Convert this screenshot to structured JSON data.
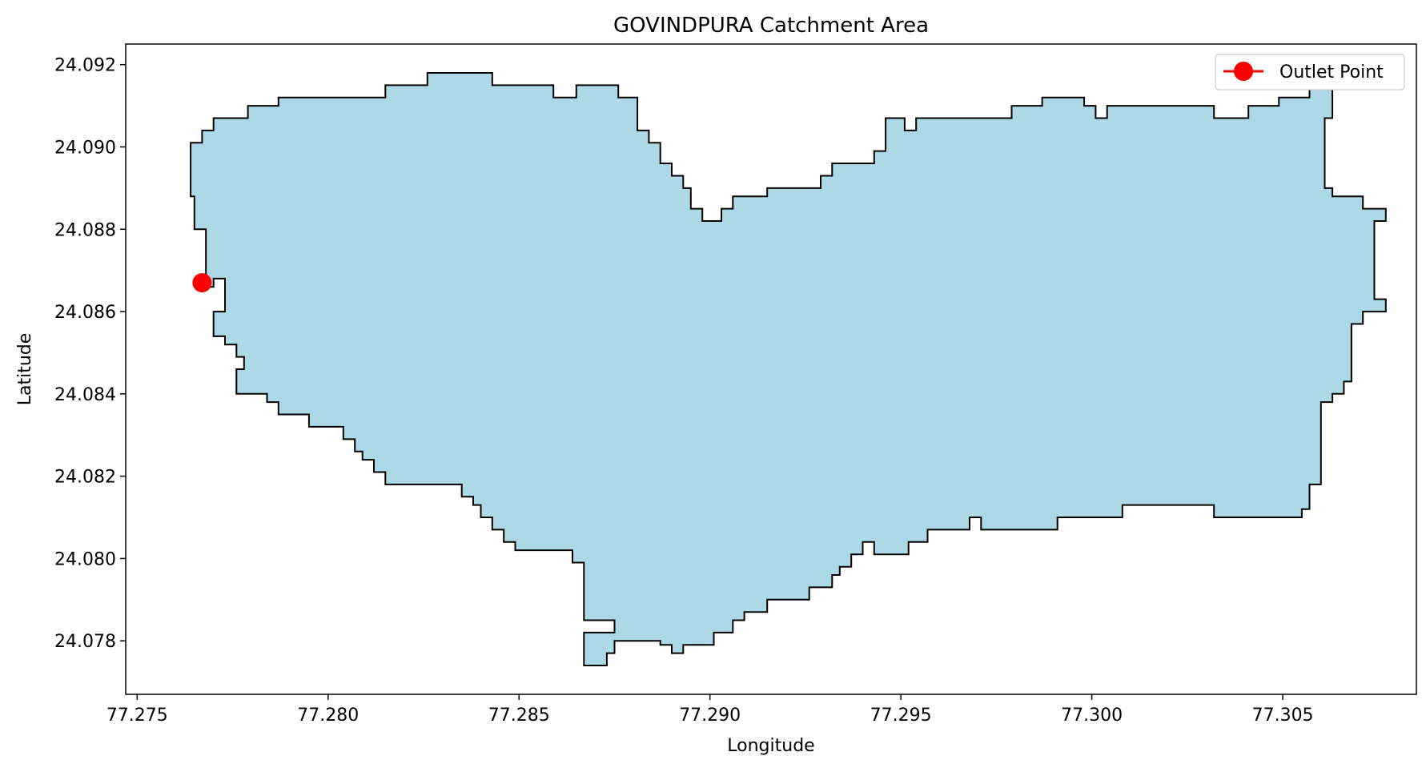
{
  "chart_data": {
    "type": "area",
    "title": "GOVINDPURA Catchment Area",
    "xlabel": "Longitude",
    "ylabel": "Latitude",
    "xlim": [
      77.2747,
      77.3085
    ],
    "ylim": [
      24.0767,
      24.0925
    ],
    "xticks": [
      77.275,
      77.28,
      77.285,
      77.29,
      77.295,
      77.3,
      77.305
    ],
    "xtick_labels": [
      "77.275",
      "77.280",
      "77.285",
      "77.290",
      "77.295",
      "77.300",
      "77.305"
    ],
    "yticks": [
      24.078,
      24.08,
      24.082,
      24.084,
      24.086,
      24.088,
      24.09,
      24.092
    ],
    "ytick_labels": [
      "24.078",
      "24.080",
      "24.082",
      "24.084",
      "24.086",
      "24.088",
      "24.090",
      "24.092"
    ],
    "grid": false,
    "legend": {
      "position": "top-right",
      "entries": [
        {
          "label": "Outlet Point",
          "color": "#ff0000"
        }
      ]
    },
    "polygon": {
      "fill": "#add8e6",
      "edge": "#000000",
      "points": [
        [
          77.2764,
          24.0901
        ],
        [
          77.2767,
          24.0901
        ],
        [
          77.2767,
          24.0904
        ],
        [
          77.277,
          24.0904
        ],
        [
          77.277,
          24.0907
        ],
        [
          77.2779,
          24.0907
        ],
        [
          77.2779,
          24.091
        ],
        [
          77.2787,
          24.091
        ],
        [
          77.2787,
          24.0912
        ],
        [
          77.2815,
          24.0912
        ],
        [
          77.2815,
          24.0915
        ],
        [
          77.2826,
          24.0915
        ],
        [
          77.2826,
          24.0918
        ],
        [
          77.2843,
          24.0918
        ],
        [
          77.2843,
          24.0915
        ],
        [
          77.2859,
          24.0915
        ],
        [
          77.2859,
          24.0912
        ],
        [
          77.2865,
          24.0912
        ],
        [
          77.2865,
          24.0915
        ],
        [
          77.2876,
          24.0915
        ],
        [
          77.2876,
          24.0912
        ],
        [
          77.2881,
          24.0912
        ],
        [
          77.2881,
          24.0904
        ],
        [
          77.2884,
          24.0904
        ],
        [
          77.2884,
          24.0901
        ],
        [
          77.2887,
          24.0901
        ],
        [
          77.2887,
          24.0896
        ],
        [
          77.289,
          24.0896
        ],
        [
          77.289,
          24.0893
        ],
        [
          77.2893,
          24.0893
        ],
        [
          77.2893,
          24.089
        ],
        [
          77.2895,
          24.089
        ],
        [
          77.2895,
          24.0885
        ],
        [
          77.2898,
          24.0885
        ],
        [
          77.2898,
          24.0882
        ],
        [
          77.2903,
          24.0882
        ],
        [
          77.2903,
          24.0885
        ],
        [
          77.2906,
          24.0885
        ],
        [
          77.2906,
          24.0888
        ],
        [
          77.2915,
          24.0888
        ],
        [
          77.2915,
          24.089
        ],
        [
          77.2929,
          24.089
        ],
        [
          77.2929,
          24.0893
        ],
        [
          77.2932,
          24.0893
        ],
        [
          77.2932,
          24.0896
        ],
        [
          77.2943,
          24.0896
        ],
        [
          77.2943,
          24.0899
        ],
        [
          77.2946,
          24.0899
        ],
        [
          77.2946,
          24.0907
        ],
        [
          77.2951,
          24.0907
        ],
        [
          77.2951,
          24.0904
        ],
        [
          77.2954,
          24.0904
        ],
        [
          77.2954,
          24.0907
        ],
        [
          77.2979,
          24.0907
        ],
        [
          77.2979,
          24.091
        ],
        [
          77.2987,
          24.091
        ],
        [
          77.2987,
          24.0912
        ],
        [
          77.2998,
          24.0912
        ],
        [
          77.2998,
          24.091
        ],
        [
          77.3001,
          24.091
        ],
        [
          77.3001,
          24.0907
        ],
        [
          77.3004,
          24.0907
        ],
        [
          77.3004,
          24.091
        ],
        [
          77.3032,
          24.091
        ],
        [
          77.3032,
          24.0907
        ],
        [
          77.3041,
          24.0907
        ],
        [
          77.3041,
          24.091
        ],
        [
          77.3049,
          24.091
        ],
        [
          77.3049,
          24.0912
        ],
        [
          77.3057,
          24.0912
        ],
        [
          77.3057,
          24.0915
        ],
        [
          77.3063,
          24.0915
        ],
        [
          77.3063,
          24.0907
        ],
        [
          77.3061,
          24.0907
        ],
        [
          77.3061,
          24.089
        ],
        [
          77.3063,
          24.089
        ],
        [
          77.3063,
          24.0888
        ],
        [
          77.3071,
          24.0888
        ],
        [
          77.3071,
          24.0885
        ],
        [
          77.3077,
          24.0885
        ],
        [
          77.3077,
          24.0882
        ],
        [
          77.3074,
          24.0882
        ],
        [
          77.3074,
          24.0863
        ],
        [
          77.3077,
          24.0863
        ],
        [
          77.3077,
          24.086
        ],
        [
          77.3071,
          24.086
        ],
        [
          77.3071,
          24.0857
        ],
        [
          77.3068,
          24.0857
        ],
        [
          77.3068,
          24.0843
        ],
        [
          77.3066,
          24.0843
        ],
        [
          77.3066,
          24.084
        ],
        [
          77.3063,
          24.084
        ],
        [
          77.3063,
          24.0838
        ],
        [
          77.306,
          24.0838
        ],
        [
          77.306,
          24.0818
        ],
        [
          77.3057,
          24.0818
        ],
        [
          77.3057,
          24.0812
        ],
        [
          77.3055,
          24.0812
        ],
        [
          77.3055,
          24.081
        ],
        [
          77.3032,
          24.081
        ],
        [
          77.3032,
          24.0813
        ],
        [
          77.3008,
          24.0813
        ],
        [
          77.3008,
          24.081
        ],
        [
          77.2991,
          24.081
        ],
        [
          77.2991,
          24.0807
        ],
        [
          77.2971,
          24.0807
        ],
        [
          77.2971,
          24.081
        ],
        [
          77.2968,
          24.081
        ],
        [
          77.2968,
          24.0807
        ],
        [
          77.2957,
          24.0807
        ],
        [
          77.2957,
          24.0804
        ],
        [
          77.2952,
          24.0804
        ],
        [
          77.2952,
          24.0801
        ],
        [
          77.2943,
          24.0801
        ],
        [
          77.2943,
          24.0804
        ],
        [
          77.294,
          24.0804
        ],
        [
          77.294,
          24.0801
        ],
        [
          77.2937,
          24.0801
        ],
        [
          77.2937,
          24.0798
        ],
        [
          77.2934,
          24.0798
        ],
        [
          77.2934,
          24.0796
        ],
        [
          77.2932,
          24.0796
        ],
        [
          77.2932,
          24.0793
        ],
        [
          77.2926,
          24.0793
        ],
        [
          77.2926,
          24.079
        ],
        [
          77.2915,
          24.079
        ],
        [
          77.2915,
          24.0787
        ],
        [
          77.2909,
          24.0787
        ],
        [
          77.2909,
          24.0785
        ],
        [
          77.2906,
          24.0785
        ],
        [
          77.2906,
          24.0782
        ],
        [
          77.2901,
          24.0782
        ],
        [
          77.2901,
          24.0779
        ],
        [
          77.2893,
          24.0779
        ],
        [
          77.2893,
          24.0777
        ],
        [
          77.289,
          24.0777
        ],
        [
          77.289,
          24.0779
        ],
        [
          77.2887,
          24.0779
        ],
        [
          77.2887,
          24.078
        ],
        [
          77.2875,
          24.078
        ],
        [
          77.2875,
          24.0777
        ],
        [
          77.2873,
          24.0777
        ],
        [
          77.2873,
          24.0774
        ],
        [
          77.2867,
          24.0774
        ],
        [
          77.2867,
          24.0782
        ],
        [
          77.2875,
          24.0782
        ],
        [
          77.2875,
          24.0785
        ],
        [
          77.2867,
          24.0785
        ],
        [
          77.2867,
          24.0799
        ],
        [
          77.2864,
          24.0799
        ],
        [
          77.2864,
          24.0802
        ],
        [
          77.2849,
          24.0802
        ],
        [
          77.2849,
          24.0804
        ],
        [
          77.2846,
          24.0804
        ],
        [
          77.2846,
          24.0807
        ],
        [
          77.2843,
          24.0807
        ],
        [
          77.2843,
          24.081
        ],
        [
          77.284,
          24.081
        ],
        [
          77.284,
          24.0813
        ],
        [
          77.2838,
          24.0813
        ],
        [
          77.2838,
          24.0815
        ],
        [
          77.2835,
          24.0815
        ],
        [
          77.2835,
          24.0818
        ],
        [
          77.2815,
          24.0818
        ],
        [
          77.2815,
          24.0821
        ],
        [
          77.2812,
          24.0821
        ],
        [
          77.2812,
          24.0824
        ],
        [
          77.2809,
          24.0824
        ],
        [
          77.2809,
          24.0826
        ],
        [
          77.2807,
          24.0826
        ],
        [
          77.2807,
          24.0829
        ],
        [
          77.2804,
          24.0829
        ],
        [
          77.2804,
          24.0832
        ],
        [
          77.2795,
          24.0832
        ],
        [
          77.2795,
          24.0835
        ],
        [
          77.2787,
          24.0835
        ],
        [
          77.2787,
          24.0838
        ],
        [
          77.2784,
          24.0838
        ],
        [
          77.2784,
          24.084
        ],
        [
          77.2776,
          24.084
        ],
        [
          77.2776,
          24.0846
        ],
        [
          77.2778,
          24.0846
        ],
        [
          77.2778,
          24.0849
        ],
        [
          77.2776,
          24.0849
        ],
        [
          77.2776,
          24.0852
        ],
        [
          77.2773,
          24.0852
        ],
        [
          77.2773,
          24.0854
        ],
        [
          77.277,
          24.0854
        ],
        [
          77.277,
          24.086
        ],
        [
          77.2773,
          24.086
        ],
        [
          77.2773,
          24.0868
        ],
        [
          77.277,
          24.0868
        ],
        [
          77.277,
          24.0866
        ],
        [
          77.2768,
          24.0866
        ],
        [
          77.2768,
          24.088
        ],
        [
          77.2765,
          24.088
        ],
        [
          77.2765,
          24.0888
        ],
        [
          77.2764,
          24.0888
        ]
      ]
    },
    "series": [
      {
        "name": "Outlet Point",
        "type": "scatter",
        "color": "#ff0000",
        "x": [
          77.2767
        ],
        "y": [
          24.0867
        ]
      }
    ]
  }
}
